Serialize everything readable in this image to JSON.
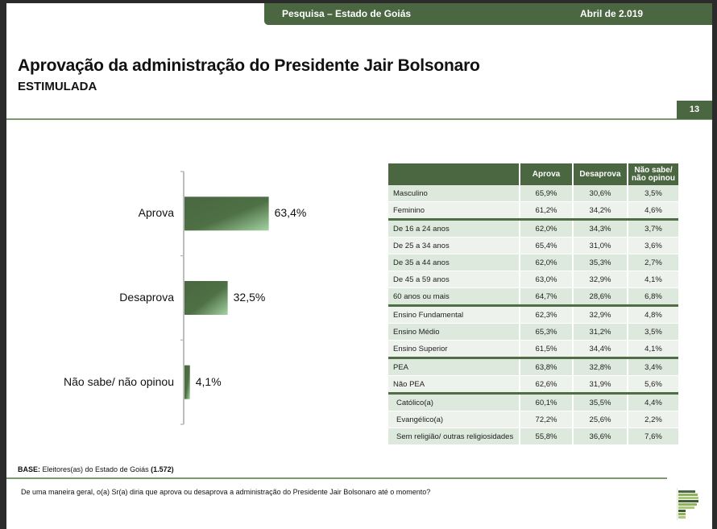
{
  "header": {
    "survey": "Pesquisa – Estado de Goiás",
    "date": "Abril de 2.019"
  },
  "title": "Aprovação da administração do Presidente Jair Bolsonaro",
  "subtitle": "ESTIMULADA",
  "page_number": "13",
  "colors": {
    "brand_green": "#4a6741",
    "bar_dark": "#4a6741",
    "bar_light": "#9fcf9f",
    "row_odd": "#dde9dc",
    "row_even": "#edf3ec"
  },
  "chart_data": {
    "type": "bar",
    "orientation": "horizontal",
    "title": "",
    "xlabel": "",
    "ylabel": "",
    "categories": [
      "Aprova",
      "Desaprova",
      "Não sabe/ não opinou"
    ],
    "values": [
      63.4,
      32.5,
      4.1
    ],
    "value_labels": [
      "63,4%",
      "32,5%",
      "4,1%"
    ],
    "unit": "%",
    "xlim": [
      0,
      100
    ],
    "grid": false,
    "legend": "none"
  },
  "table": {
    "headers": [
      "",
      "Aprova",
      "Desaprova",
      "Não sabe/\nnão opinou"
    ],
    "header_lines": [
      [
        "Não sabe/",
        "não opinou"
      ]
    ],
    "groups": [
      {
        "rows": [
          {
            "label": "Masculino",
            "aprova": "65,9%",
            "desaprova": "30,6%",
            "nao_sabe": "3,5%"
          },
          {
            "label": "Feminino",
            "aprova": "61,2%",
            "desaprova": "34,2%",
            "nao_sabe": "4,6%"
          }
        ]
      },
      {
        "rows": [
          {
            "label": "De 16 a 24 anos",
            "aprova": "62,0%",
            "desaprova": "34,3%",
            "nao_sabe": "3,7%"
          },
          {
            "label": "De 25 a 34 anos",
            "aprova": "65,4%",
            "desaprova": "31,0%",
            "nao_sabe": "3,6%"
          },
          {
            "label": "De 35 a 44 anos",
            "aprova": "62,0%",
            "desaprova": "35,3%",
            "nao_sabe": "2,7%"
          },
          {
            "label": "De 45 a 59 anos",
            "aprova": "63,0%",
            "desaprova": "32,9%",
            "nao_sabe": "4,1%"
          },
          {
            "label": "60 anos ou mais",
            "aprova": "64,7%",
            "desaprova": "28,6%",
            "nao_sabe": "6,8%"
          }
        ]
      },
      {
        "rows": [
          {
            "label": "Ensino Fundamental",
            "aprova": "62,3%",
            "desaprova": "32,9%",
            "nao_sabe": "4,8%"
          },
          {
            "label": "Ensino Médio",
            "aprova": "65,3%",
            "desaprova": "31,2%",
            "nao_sabe": "3,5%"
          },
          {
            "label": "Ensino Superior",
            "aprova": "61,5%",
            "desaprova": "34,4%",
            "nao_sabe": "4,1%"
          }
        ]
      },
      {
        "rows": [
          {
            "label": "PEA",
            "aprova": "63,8%",
            "desaprova": "32,8%",
            "nao_sabe": "3,4%"
          },
          {
            "label": "Não PEA",
            "aprova": "62,6%",
            "desaprova": "31,9%",
            "nao_sabe": "5,6%"
          }
        ]
      },
      {
        "indent": true,
        "rows": [
          {
            "label": "Católico(a)",
            "aprova": "60,1%",
            "desaprova": "35,5%",
            "nao_sabe": "4,4%"
          },
          {
            "label": "Evangélico(a)",
            "aprova": "72,2%",
            "desaprova": "25,6%",
            "nao_sabe": "2,2%"
          },
          {
            "label": "Sem religião/ outras religiosidades",
            "aprova": "55,8%",
            "desaprova": "36,6%",
            "nao_sabe": "7,6%"
          }
        ]
      }
    ]
  },
  "footer": {
    "base_label": "BASE:",
    "base_text": " Eleitores(as) do Estado de Goiás ",
    "base_count": "(1.572)",
    "question": "De uma maneira geral, o(a) Sr(a) diria que aprova ou desaprova a administração do Presidente Jair Bolsonaro até o momento?"
  },
  "logo": {
    "icon": "pollster-logo-icon"
  }
}
